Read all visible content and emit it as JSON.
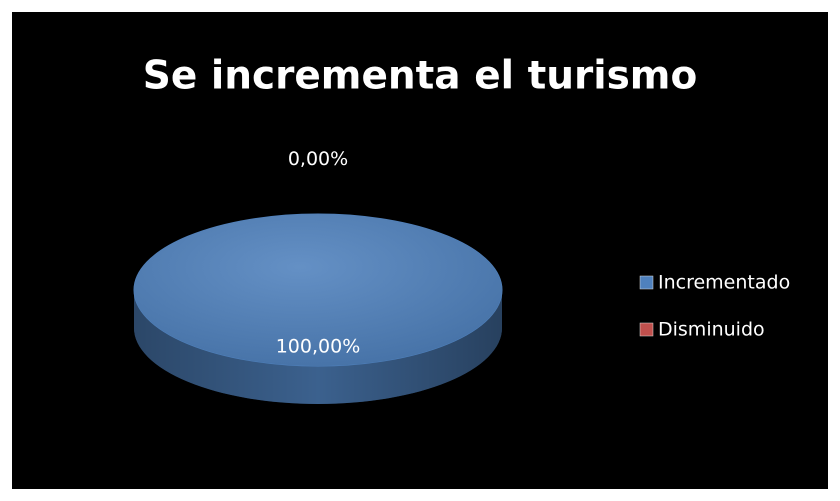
{
  "chart_data": {
    "type": "pie",
    "title": "Se incrementa el turismo",
    "categories": [
      "Incrementado",
      "Disminuido"
    ],
    "values": [
      100,
      0
    ],
    "value_labels": [
      "100,00%",
      "0,00%"
    ],
    "colors": [
      "#4f81bd",
      "#c0504d"
    ],
    "legend": "right"
  }
}
